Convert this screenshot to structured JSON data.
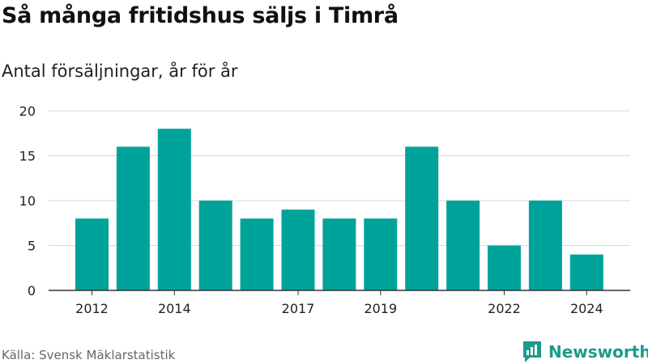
{
  "title": "Så många fritidshus säljs i Timrå",
  "subtitle": "Antal försäljningar, år för år",
  "source": "Källa: Svensk Mäklarstatistik",
  "brand": {
    "name": "Newsworthy",
    "icon": "newsworthy-logo-icon"
  },
  "colors": {
    "bar": "#00a39a",
    "grid": "#d9d9d9",
    "axis": "#333333",
    "brand": "#1a9b8c"
  },
  "chart_data": {
    "type": "bar",
    "categories": [
      "2012",
      "2013",
      "2014",
      "2015",
      "2016",
      "2017",
      "2018",
      "2019",
      "2020",
      "2021",
      "2022",
      "2023",
      "2024"
    ],
    "values": [
      8,
      16,
      18,
      10,
      8,
      9,
      8,
      8,
      16,
      10,
      5,
      10,
      4
    ],
    "x_tick_labels": [
      "2012",
      "2014",
      "2017",
      "2019",
      "2022",
      "2024"
    ],
    "y_ticks": [
      0,
      5,
      10,
      15,
      20
    ],
    "ylim": [
      0,
      20
    ],
    "grid": true
  }
}
